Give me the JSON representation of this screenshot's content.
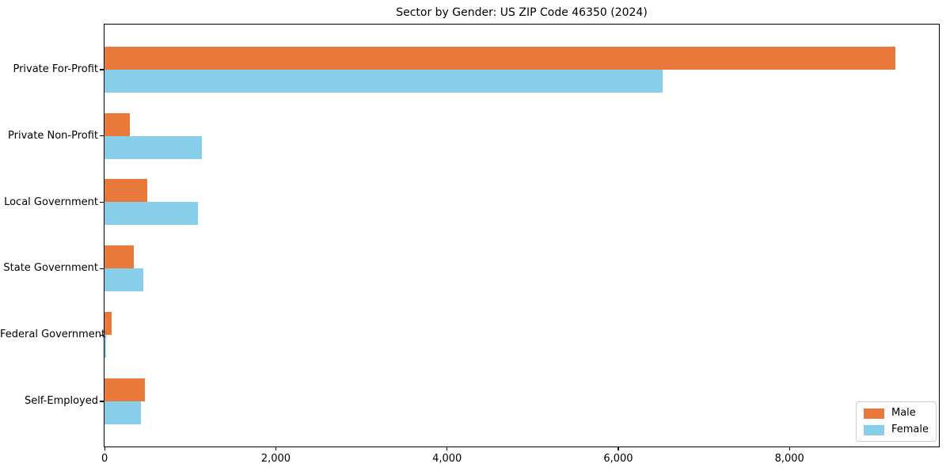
{
  "title": "Sector by Gender: US ZIP Code 46350 (2024)",
  "colors": {
    "male": "#e8793b",
    "female": "#87ceeb",
    "axis": "#000000",
    "legend_border": "#cccccc",
    "background": "#ffffff"
  },
  "chart_data": {
    "type": "bar",
    "orientation": "horizontal",
    "title": "Sector by Gender: US ZIP Code 46350 (2024)",
    "categories": [
      "Private For-Profit",
      "Private Non-Profit",
      "Local Government",
      "State Government",
      "Federal Government",
      "Self-Employed"
    ],
    "series": [
      {
        "name": "Male",
        "color": "#e8793b",
        "values": [
          9240,
          300,
          500,
          340,
          80,
          470
        ]
      },
      {
        "name": "Female",
        "color": "#87ceeb",
        "values": [
          6520,
          1140,
          1090,
          450,
          20,
          430
        ]
      }
    ],
    "xlabel": "",
    "ylabel": "",
    "xlim": [
      0,
      9744
    ],
    "xticks": [
      0,
      2000,
      4000,
      6000,
      8000
    ],
    "xtick_labels": [
      "0",
      "2,000",
      "4,000",
      "6,000",
      "8,000"
    ],
    "grid": false,
    "legend": {
      "position": "lower right",
      "entries": [
        "Male",
        "Female"
      ]
    }
  }
}
